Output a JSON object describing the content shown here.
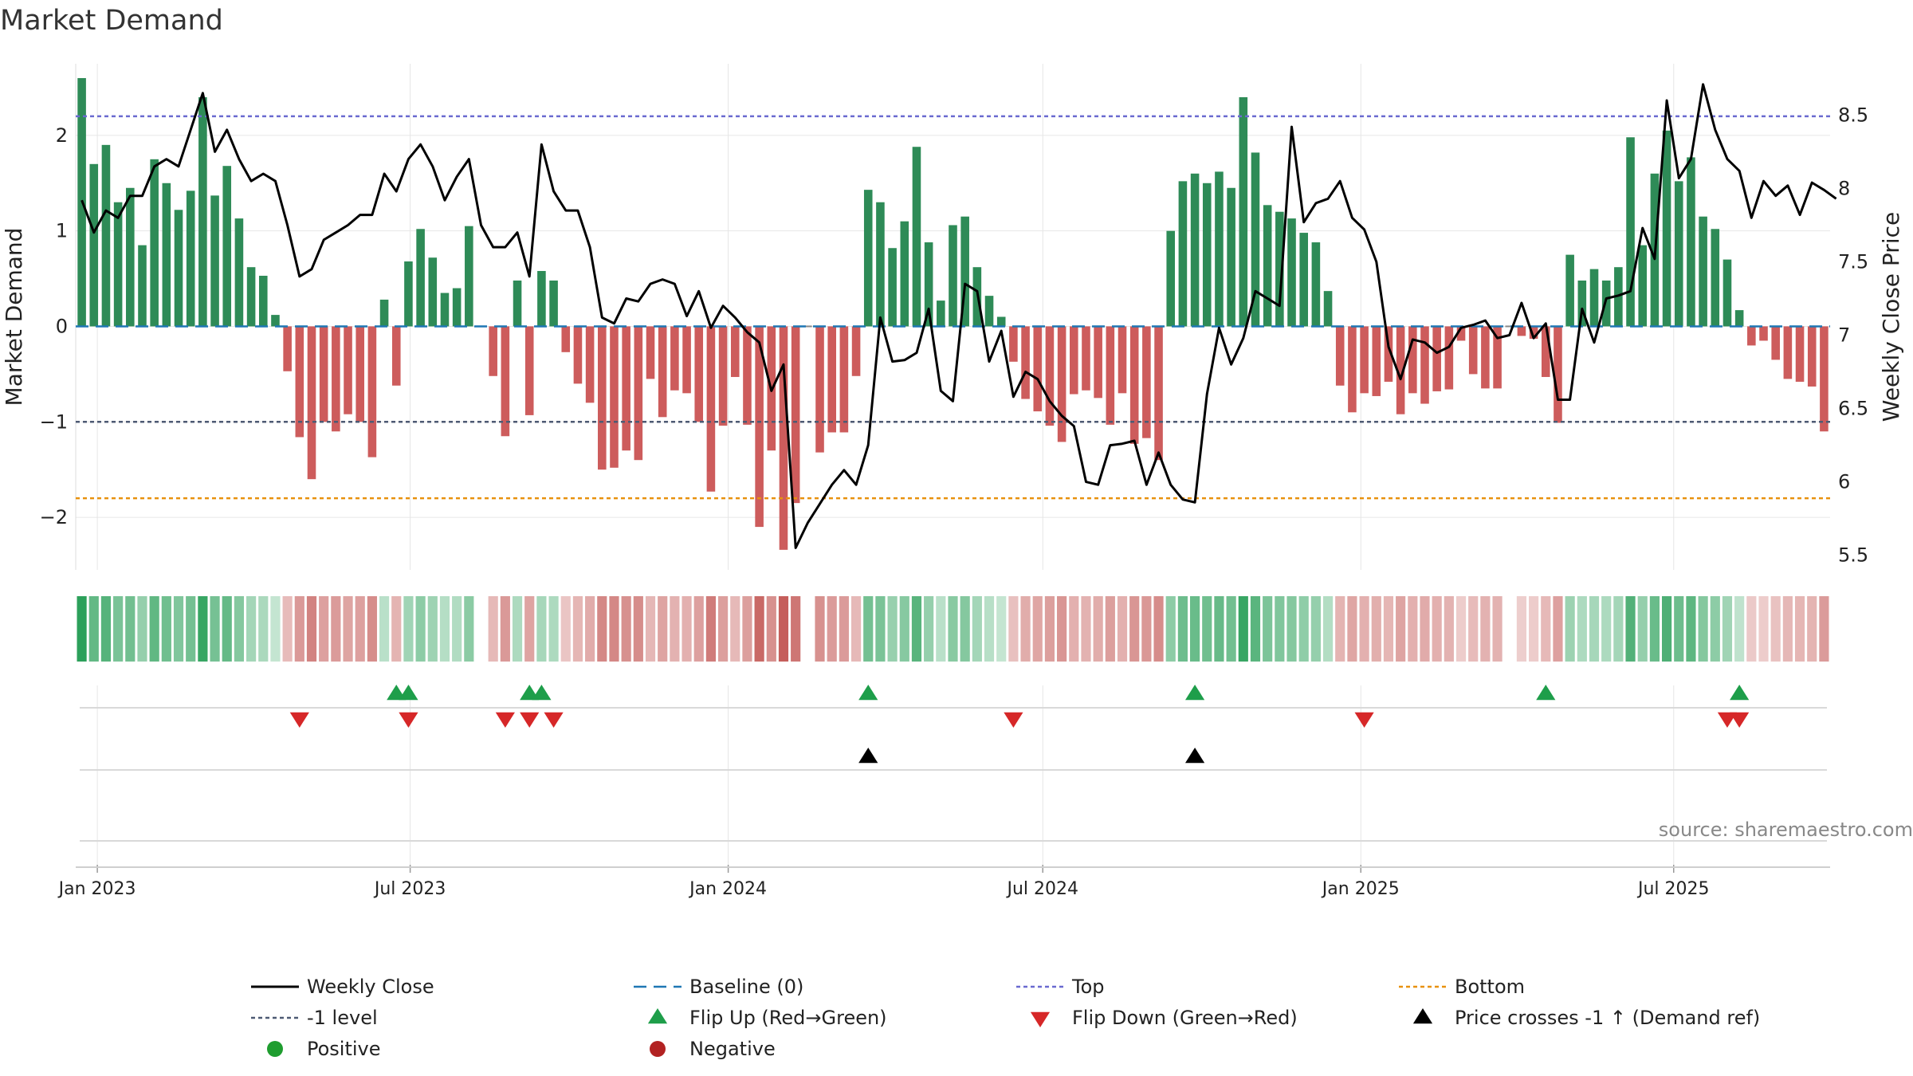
{
  "chart_data": {
    "type": "bar",
    "title": "Market Demand",
    "ylabel_left": "Market Demand",
    "ylabel_right": "Weekly Close Price",
    "source": "source: sharemaestro.com",
    "x_start": "2022-12-23",
    "x_step_days": 7,
    "ylim_left": [
      -2.55,
      2.75
    ],
    "ylim_right": [
      5.4,
      8.85
    ],
    "left_ticks": [
      {
        "v": 2,
        "label": "2"
      },
      {
        "v": 1,
        "label": "1"
      },
      {
        "v": 0,
        "label": "0"
      },
      {
        "v": -1,
        "label": "−1"
      },
      {
        "v": -2,
        "label": "−2"
      }
    ],
    "right_ticks": [
      {
        "v": 8.5,
        "label": "8.5"
      },
      {
        "v": 8,
        "label": "8"
      },
      {
        "v": 7.5,
        "label": "7.5"
      },
      {
        "v": 7,
        "label": "7"
      },
      {
        "v": 6.5,
        "label": "6.5"
      },
      {
        "v": 6,
        "label": "6"
      },
      {
        "v": 5.5,
        "label": "5.5"
      }
    ],
    "x_ticks": [
      {
        "date": "2023-01-01",
        "label": "Jan 2023"
      },
      {
        "date": "2023-07-01",
        "label": "Jul 2023"
      },
      {
        "date": "2024-01-01",
        "label": "Jan 2024"
      },
      {
        "date": "2024-07-01",
        "label": "Jul 2024"
      },
      {
        "date": "2025-01-01",
        "label": "Jan 2025"
      },
      {
        "date": "2025-07-01",
        "label": "Jul 2025"
      }
    ],
    "reference_lines": {
      "top": 2.2,
      "bottom": -1.8,
      "minus_one": -1,
      "baseline": 0
    },
    "demand": [
      2.6,
      1.7,
      1.9,
      1.3,
      1.45,
      0.85,
      1.75,
      1.5,
      1.22,
      1.42,
      2.4,
      1.37,
      1.68,
      1.13,
      0.62,
      0.53,
      0.12,
      -0.47,
      -1.16,
      -1.6,
      -1.0,
      -1.1,
      -0.92,
      -1.0,
      -1.37,
      0.28,
      -0.62,
      0.68,
      1.02,
      0.72,
      0.35,
      0.4,
      1.05,
      0,
      -0.52,
      -1.15,
      0.48,
      -0.93,
      0.58,
      0.48,
      -0.27,
      -0.6,
      -0.8,
      -1.5,
      -1.48,
      -1.3,
      -1.4,
      -0.55,
      -0.95,
      -0.67,
      -0.7,
      -1.0,
      -1.73,
      -1.04,
      -0.53,
      -1.03,
      -2.1,
      -1.3,
      -2.34,
      -1.85,
      0,
      -1.32,
      -1.11,
      -1.11,
      -0.52,
      1.43,
      1.3,
      0.82,
      1.1,
      1.88,
      0.88,
      0.27,
      1.06,
      1.15,
      0.62,
      0.32,
      0.1,
      -0.37,
      -0.76,
      -0.89,
      -1.04,
      -1.21,
      -0.71,
      -0.67,
      -0.75,
      -1.03,
      -0.7,
      -1.23,
      -1.17,
      -1.4,
      1.0,
      1.52,
      1.6,
      1.5,
      1.62,
      1.45,
      2.4,
      1.82,
      1.27,
      1.2,
      1.13,
      0.98,
      0.88,
      0.37,
      -0.62,
      -0.9,
      -0.7,
      -0.73,
      -0.58,
      -0.92,
      -0.7,
      -0.81,
      -0.68,
      -0.66,
      -0.15,
      -0.5,
      -0.65,
      -0.65,
      0,
      -0.1,
      -0.13,
      -0.53,
      -1.01,
      0.75,
      0.48,
      0.6,
      0.48,
      0.62,
      1.98,
      0.85,
      1.6,
      2.05,
      1.52,
      1.77,
      1.15,
      1.02,
      0.7,
      0.17,
      -0.2,
      -0.15,
      -0.35,
      -0.55,
      -0.58,
      -0.63,
      -1.1
    ],
    "price": [
      7.92,
      7.7,
      7.85,
      7.8,
      7.95,
      7.95,
      8.15,
      8.2,
      8.15,
      8.4,
      8.65,
      8.25,
      8.4,
      8.2,
      8.05,
      8.1,
      8.05,
      7.75,
      7.4,
      7.45,
      7.65,
      7.7,
      7.75,
      7.82,
      7.82,
      8.1,
      7.98,
      8.2,
      8.3,
      8.15,
      7.92,
      8.08,
      8.2,
      7.75,
      7.6,
      7.6,
      7.7,
      7.4,
      8.3,
      7.98,
      7.85,
      7.85,
      7.6,
      7.12,
      7.08,
      7.25,
      7.23,
      7.35,
      7.38,
      7.35,
      7.13,
      7.3,
      7.05,
      7.2,
      7.12,
      7.02,
      6.95,
      6.62,
      6.8,
      5.55,
      5.72,
      5.85,
      5.98,
      6.08,
      5.98,
      6.25,
      7.12,
      6.82,
      6.83,
      6.88,
      7.18,
      6.62,
      6.55,
      7.35,
      7.3,
      6.82,
      7.03,
      6.58,
      6.75,
      6.7,
      6.55,
      6.45,
      6.38,
      6.0,
      5.98,
      6.25,
      6.26,
      6.28,
      5.98,
      6.2,
      5.98,
      5.88,
      5.86,
      6.6,
      7.05,
      6.8,
      6.98,
      7.3,
      7.25,
      7.2,
      8.42,
      7.77,
      7.9,
      7.93,
      8.05,
      7.8,
      7.72,
      7.5,
      6.92,
      6.7,
      6.97,
      6.95,
      6.88,
      6.92,
      7.05,
      7.07,
      7.1,
      6.98,
      7.0,
      7.22,
      6.98,
      7.08,
      6.56,
      6.56,
      7.18,
      6.95,
      7.25,
      7.27,
      7.3,
      7.73,
      7.52,
      8.6,
      8.07,
      8.2,
      8.71,
      8.4,
      8.2,
      8.12,
      7.8,
      8.05,
      7.95,
      8.02,
      7.82,
      8.04,
      7.99,
      7.93
    ],
    "flip_up_dates": [
      "2023-06-23",
      "2023-06-30",
      "2023-09-08",
      "2023-09-15",
      "2024-03-22",
      "2024-09-27",
      "2025-04-18",
      "2025-08-08"
    ],
    "flip_down_dates": [
      "2023-04-28",
      "2023-06-30",
      "2023-08-25",
      "2023-09-08",
      "2023-09-22",
      "2024-06-14",
      "2025-01-03",
      "2025-08-01",
      "2025-08-08"
    ],
    "price_cross_dates": [
      "2024-03-22",
      "2024-09-27"
    ],
    "colors": {
      "positive_bar": "#2e8b57",
      "negative_bar": "#cd5c5c",
      "price_line": "#000000",
      "top_line": "#6a6ad0",
      "bottom_line": "#e8910e",
      "minus_one_line": "#4d5a73",
      "baseline": "#1f77b4",
      "flip_up": "#1e9e4a",
      "flip_down": "#d62728",
      "cross": "#000000",
      "positive_dot": "#1f9d2f",
      "negative_dot": "#b22222",
      "grid": "#e6e6e6"
    },
    "legend": [
      {
        "key": "line",
        "color": "#000000",
        "label": "Weekly Close"
      },
      {
        "key": "dash",
        "color": "#1f77b4",
        "label": "Baseline (0)"
      },
      {
        "key": "dot",
        "color": "#6a6ad0",
        "label": "Top"
      },
      {
        "key": "dot",
        "color": "#e8910e",
        "label": "Bottom"
      },
      {
        "key": "dot",
        "color": "#4d5a73",
        "label": "-1 level"
      },
      {
        "key": "up",
        "color": "#1e9e4a",
        "label": "Flip Up (Red→Green)"
      },
      {
        "key": "down",
        "color": "#d62728",
        "label": "Flip Down (Green→Red)"
      },
      {
        "key": "up",
        "color": "#000000",
        "label": "Price crosses -1 ↑ (Demand ref)"
      },
      {
        "key": "circle",
        "color": "#1f9d2f",
        "label": "Positive"
      },
      {
        "key": "circle",
        "color": "#b22222",
        "label": "Negative"
      }
    ]
  }
}
